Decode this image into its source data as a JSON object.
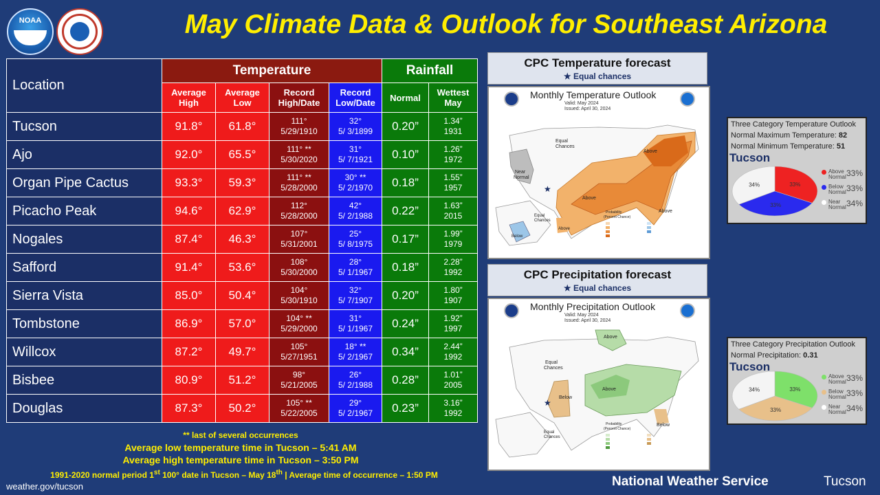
{
  "title": "May Climate Data & Outlook for Southeast Arizona",
  "logos": {
    "noaa_text": "NOAA"
  },
  "table": {
    "location_header": "Location",
    "temperature_header": "Temperature",
    "rainfall_header": "Rainfall",
    "col_avg_high": [
      "Average",
      "High"
    ],
    "col_avg_low": [
      "Average",
      "Low"
    ],
    "col_rec_high": [
      "Record",
      "High/Date"
    ],
    "col_rec_low": [
      "Record",
      "Low/Date"
    ],
    "col_normal": "Normal",
    "col_wettest": [
      "Wettest",
      "May"
    ],
    "rows": [
      {
        "loc": "Tucson",
        "high": "91.8°",
        "low": "61.8°",
        "rh": "111°",
        "rhd": "5/29/1910",
        "rl": "32°",
        "rld": "5/ 3/1899",
        "norm": "0.20”",
        "wet": "1.34”",
        "wety": "1931"
      },
      {
        "loc": "Ajo",
        "high": "92.0°",
        "low": "65.5°",
        "rh": "111° **",
        "rhd": "5/30/2020",
        "rl": "31°",
        "rld": "5/ 7/1921",
        "norm": "0.10”",
        "wet": "1.26”",
        "wety": "1972"
      },
      {
        "loc": "Organ Pipe Cactus",
        "high": "93.3°",
        "low": "59.3°",
        "rh": "111° **",
        "rhd": "5/28/2000",
        "rl": "30° **",
        "rld": "5/ 2/1970",
        "norm": "0.18”",
        "wet": "1.55”",
        "wety": "1957"
      },
      {
        "loc": "Picacho Peak",
        "high": "94.6°",
        "low": "62.9°",
        "rh": "112°",
        "rhd": "5/28/2000",
        "rl": "42°",
        "rld": "5/ 2/1988",
        "norm": "0.22”",
        "wet": "1.63”",
        "wety": "2015"
      },
      {
        "loc": "Nogales",
        "high": "87.4°",
        "low": "46.3°",
        "rh": "107°",
        "rhd": "5/31/2001",
        "rl": "25°",
        "rld": "5/ 8/1975",
        "norm": "0.17”",
        "wet": "1.99”",
        "wety": "1979"
      },
      {
        "loc": "Safford",
        "high": "91.4°",
        "low": "53.6°",
        "rh": "108°",
        "rhd": "5/30/2000",
        "rl": "28°",
        "rld": "5/ 1/1967",
        "norm": "0.18”",
        "wet": "2.28”",
        "wety": "1992"
      },
      {
        "loc": "Sierra Vista",
        "high": "85.0°",
        "low": "50.4°",
        "rh": "104°",
        "rhd": "5/30/1910",
        "rl": "32°",
        "rld": "5/ 7/1907",
        "norm": "0.20”",
        "wet": "1.80”",
        "wety": "1907"
      },
      {
        "loc": "Tombstone",
        "high": "86.9°",
        "low": "57.0°",
        "rh": "104° **",
        "rhd": "5/29/2000",
        "rl": "31°",
        "rld": "5/ 1/1967",
        "norm": "0.24”",
        "wet": "1.92”",
        "wety": "1997"
      },
      {
        "loc": "Willcox",
        "high": "87.2°",
        "low": "49.7°",
        "rh": "105°",
        "rhd": "5/27/1951",
        "rl": "18° **",
        "rld": "5/ 2/1967",
        "norm": "0.34”",
        "wet": "2.44”",
        "wety": "1992"
      },
      {
        "loc": "Bisbee",
        "high": "80.9°",
        "low": "51.2°",
        "rh": "98°",
        "rhd": "5/21/2005",
        "rl": "26°",
        "rld": "5/ 2/1988",
        "norm": "0.28”",
        "wet": "1.01”",
        "wety": "2005"
      },
      {
        "loc": "Douglas",
        "high": "87.3°",
        "low": "50.2°",
        "rh": "105° **",
        "rhd": "5/22/2005",
        "rl": "29°",
        "rld": "5/ 2/1967",
        "norm": "0.23”",
        "wet": "3.16”",
        "wety": "1992"
      }
    ]
  },
  "footer": {
    "note": "** last of several occurrences",
    "low_time": "Average low temperature time in Tucson – 5:41 AM",
    "high_time": "Average high temperature time in Tucson – 3:50 PM",
    "normal_a": "1991-2020 normal period 1",
    "normal_sup1": "st",
    "normal_b": " 100° date in Tucson – May 18",
    "normal_sup2": "th",
    "normal_c": " | Average time of occurrence – 1:50 PM",
    "website": "weather.gov/tucson",
    "nws": "National Weather Service",
    "office": "Tucson"
  },
  "cpc_temp": {
    "header": "CPC Temperature forecast",
    "subheader": "Equal chances",
    "map_title": "Monthly Temperature Outlook",
    "valid": "Valid:  May 2024",
    "issued": "Issued:  April 30, 2024",
    "labels": {
      "eq1": "Equal",
      "eq2": "Chances",
      "near1": "Near",
      "near2": "Normal",
      "above1": "Above",
      "above2": "Above",
      "above3": "Above",
      "above4": "Above",
      "below": "Below",
      "eq3": "Equal",
      "eq4": "Chances",
      "prob1": "Probability",
      "prob2": "(Percent Chance)"
    }
  },
  "cpc_precip": {
    "header": "CPC Precipitation forecast",
    "subheader": "Equal chances",
    "map_title": "Monthly Precipitation Outlook",
    "valid": "Valid:  May 2024",
    "issued": "Issued:  April 30, 2024",
    "labels": {
      "above1": "Above",
      "above2": "Above",
      "below1": "Below",
      "below2": "Below",
      "eq1": "Equal",
      "eq2": "Chances",
      "eq3": "Equal",
      "eq4": "Chances",
      "prob1": "Probability",
      "prob2": "(Percent Chance)"
    }
  },
  "temp_pie": {
    "title": "Three Category Temperature Outlook",
    "line1_label": "Normal Maximum Temperature: ",
    "line1_val": "82",
    "line2_label": "Normal Minimum Temperature: ",
    "line2_val": "51",
    "city": "Tucson",
    "slices": [
      {
        "name": "Above Normal",
        "name1": "Above",
        "name2": "Normal",
        "pct": 33,
        "label": "33%",
        "color": "#ee2222"
      },
      {
        "name": "Below Normal",
        "name1": "Below",
        "name2": "Normal",
        "pct": 33,
        "label": "33%",
        "color": "#2a2aee"
      },
      {
        "name": "Near Normal",
        "name1": "Near",
        "name2": "Normal",
        "pct": 34,
        "label": "34%",
        "color": "#f4f4f4"
      }
    ]
  },
  "precip_pie": {
    "title": "Three Category Precipitation Outlook",
    "line1_label": "Normal Precipitation: ",
    "line1_val": "0.31",
    "city": "Tucson",
    "slices": [
      {
        "name": "Above Normal",
        "name1": "Above",
        "name2": "Normal",
        "pct": 33,
        "label": "33%",
        "color": "#7ee06a"
      },
      {
        "name": "Below Normal",
        "name1": "Below",
        "name2": "Normal",
        "pct": 33,
        "label": "33%",
        "color": "#e8c08a"
      },
      {
        "name": "Near Normal",
        "name1": "Near",
        "name2": "Normal",
        "pct": 34,
        "label": "34%",
        "color": "#f4f4f4"
      }
    ]
  }
}
